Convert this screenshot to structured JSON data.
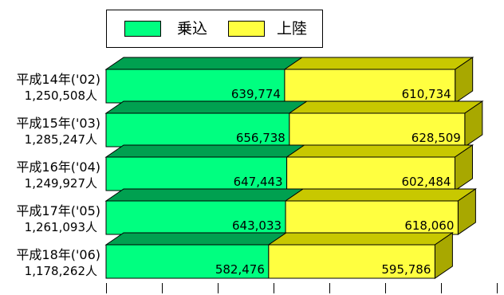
{
  "legend": {
    "series": [
      {
        "label": "乗込",
        "color": "#00ff80"
      },
      {
        "label": "上陸",
        "color": "#ffff40"
      }
    ]
  },
  "chart_data": {
    "type": "bar",
    "stacked": true,
    "orientation": "horizontal",
    "three_d": true,
    "categories": [
      "平成14年('02)",
      "平成15年('03)",
      "平成16年('04)",
      "平成17年('05)",
      "平成18年('06)"
    ],
    "totals": [
      "1,250,508人",
      "1,285,247人",
      "1,249,927人",
      "1,261,093人",
      "1,178,262人"
    ],
    "series": [
      {
        "name": "乗込",
        "values": [
          639774,
          656738,
          647443,
          643033,
          582476
        ],
        "labels": [
          "639,774",
          "656,738",
          "647,443",
          "643,033",
          "582,476"
        ]
      },
      {
        "name": "上陸",
        "values": [
          610734,
          628509,
          602484,
          618060,
          595786
        ],
        "labels": [
          "610,734",
          "628,509",
          "602,484",
          "618,060",
          "595,786"
        ]
      }
    ],
    "xlim": [
      0,
      1400000
    ],
    "x_tick_step": 200000,
    "x_tick_labels": false,
    "legend_position": "top",
    "colors": {
      "green_front": "#00ff80",
      "green_top": "#00a050",
      "yellow_front": "#ffff40",
      "yellow_top": "#c8c800",
      "yellow_side": "#a8a800"
    }
  }
}
